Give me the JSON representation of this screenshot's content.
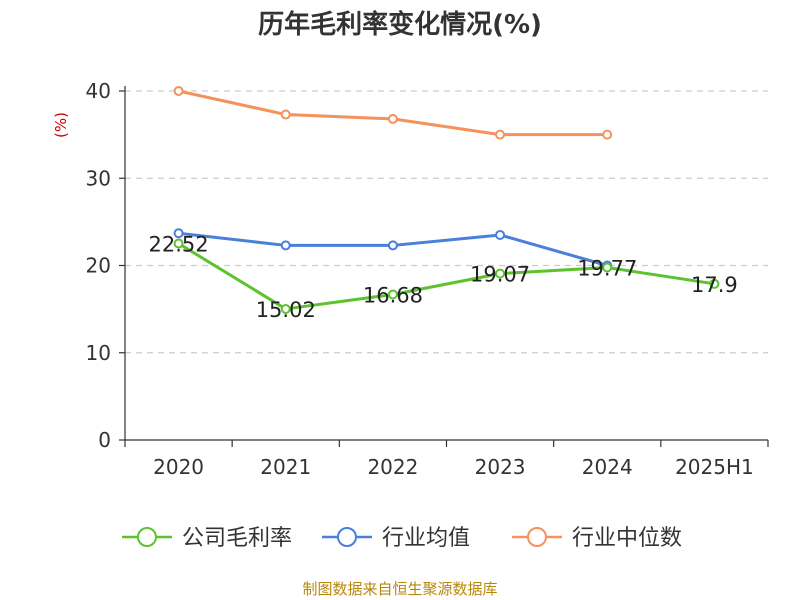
{
  "chart_data": {
    "type": "line",
    "title": "历年毛利率变化情况(%)",
    "ylabel": "(%)",
    "categories": [
      "2020",
      "2021",
      "2022",
      "2023",
      "2024",
      "2025H1"
    ],
    "ylim": [
      0,
      40
    ],
    "yticks": [
      0,
      10,
      20,
      30,
      40
    ],
    "grid": true,
    "legend_position": "bottom",
    "series": [
      {
        "name": "公司毛利率",
        "color": "#5cc22e",
        "values": [
          22.52,
          15.02,
          16.68,
          19.07,
          19.77,
          17.9
        ],
        "labels": [
          "22.52",
          "15.02",
          "16.68",
          "19.07",
          "19.77",
          "17.9"
        ]
      },
      {
        "name": "行业均值",
        "color": "#4a7fdb",
        "values": [
          23.7,
          22.3,
          22.3,
          23.5,
          20.0,
          null
        ]
      },
      {
        "name": "行业中位数",
        "color": "#f5915a",
        "values": [
          40.0,
          37.3,
          36.8,
          35.0,
          35.0,
          null
        ]
      }
    ],
    "source": "制图数据来自恒生聚源数据库"
  }
}
